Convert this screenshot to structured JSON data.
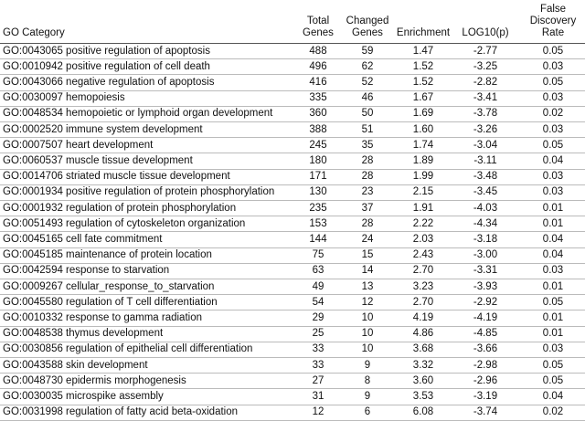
{
  "table": {
    "header": [
      [
        "GO Category"
      ],
      [
        "Total",
        "Genes"
      ],
      [
        "Changed",
        "Genes"
      ],
      [
        "Enrichment"
      ],
      [
        "LOG10(p)"
      ],
      [
        "False",
        "Discovery",
        "Rate"
      ]
    ],
    "rows": [
      [
        "GO:0043065 positive regulation of apoptosis",
        "488",
        "59",
        "1.47",
        "-2.77",
        "0.05"
      ],
      [
        "GO:0010942 positive regulation of cell death",
        "496",
        "62",
        "1.52",
        "-3.25",
        "0.03"
      ],
      [
        "GO:0043066 negative regulation of apoptosis",
        "416",
        "52",
        "1.52",
        "-2.82",
        "0.05"
      ],
      [
        "GO:0030097 hemopoiesis",
        "335",
        "46",
        "1.67",
        "-3.41",
        "0.03"
      ],
      [
        "GO:0048534 hemopoietic or lymphoid organ development",
        "360",
        "50",
        "1.69",
        "-3.78",
        "0.02"
      ],
      [
        "GO:0002520 immune system development",
        "388",
        "51",
        "1.60",
        "-3.26",
        "0.03"
      ],
      [
        "GO:0007507 heart development",
        "245",
        "35",
        "1.74",
        "-3.04",
        "0.05"
      ],
      [
        "GO:0060537 muscle tissue development",
        "180",
        "28",
        "1.89",
        "-3.11",
        "0.04"
      ],
      [
        "GO:0014706 striated muscle tissue development",
        "171",
        "28",
        "1.99",
        "-3.48",
        "0.03"
      ],
      [
        "GO:0001934 positive regulation of protein phosphorylation",
        "130",
        "23",
        "2.15",
        "-3.45",
        "0.03"
      ],
      [
        "GO:0001932 regulation of protein phosphorylation",
        "235",
        "37",
        "1.91",
        "-4.03",
        "0.01"
      ],
      [
        "GO:0051493 regulation of cytoskeleton organization",
        "153",
        "28",
        "2.22",
        "-4.34",
        "0.01"
      ],
      [
        "GO:0045165 cell fate commitment",
        "144",
        "24",
        "2.03",
        "-3.18",
        "0.04"
      ],
      [
        "GO:0045185 maintenance of protein location",
        "75",
        "15",
        "2.43",
        "-3.00",
        "0.04"
      ],
      [
        "GO:0042594 response to starvation",
        "63",
        "14",
        "2.70",
        "-3.31",
        "0.03"
      ],
      [
        "GO:0009267 cellular_response_to_starvation",
        "49",
        "13",
        "3.23",
        "-3.93",
        "0.01"
      ],
      [
        "GO:0045580 regulation of T cell differentiation",
        "54",
        "12",
        "2.70",
        "-2.92",
        "0.05"
      ],
      [
        "GO:0010332 response to gamma radiation",
        "29",
        "10",
        "4.19",
        "-4.19",
        "0.01"
      ],
      [
        "GO:0048538 thymus development",
        "25",
        "10",
        "4.86",
        "-4.85",
        "0.01"
      ],
      [
        "GO:0030856 regulation of epithelial cell differentiation",
        "33",
        "10",
        "3.68",
        "-3.66",
        "0.03"
      ],
      [
        "GO:0043588 skin development",
        "33",
        "9",
        "3.32",
        "-2.98",
        "0.05"
      ],
      [
        "GO:0048730 epidermis morphogenesis",
        "27",
        "8",
        "3.60",
        "-2.96",
        "0.05"
      ],
      [
        "GO:0030035 microspike assembly",
        "31",
        "9",
        "3.53",
        "-3.19",
        "0.04"
      ],
      [
        "GO:0031998 regulation of fatty acid beta-oxidation",
        "12",
        "6",
        "6.08",
        "-3.74",
        "0.02"
      ]
    ]
  }
}
